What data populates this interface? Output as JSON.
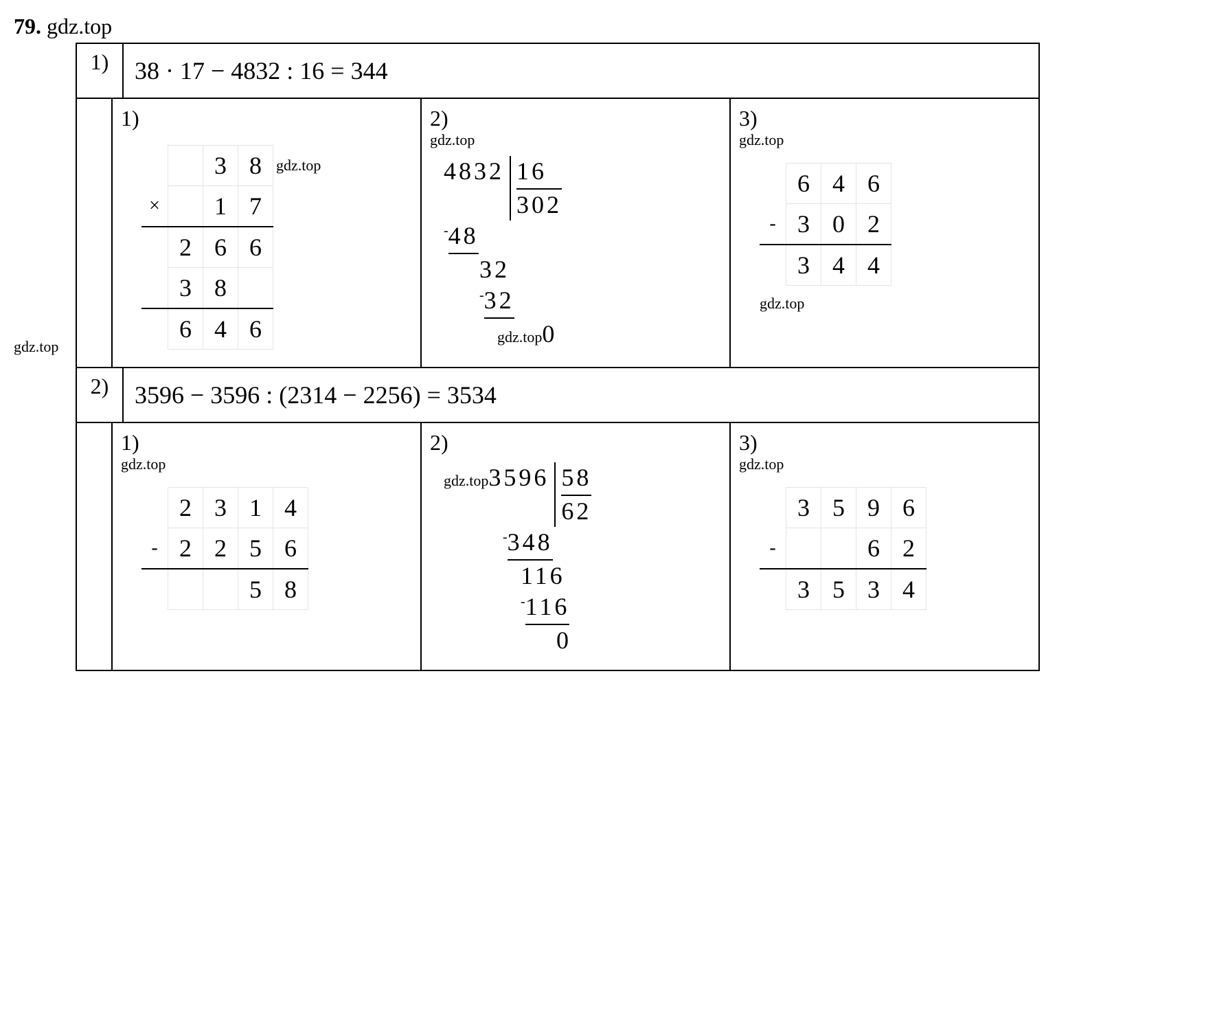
{
  "problem_number": "79.",
  "header_watermark": "gdz.top",
  "left_watermark": "gdz.top",
  "problems": [
    {
      "label": "1)",
      "equation": "38 · 17 − 4832 : 16 = 344",
      "steps": [
        {
          "label": "1)",
          "type": "column",
          "op": "×",
          "watermark_in_cell": "gdz.top",
          "rows": [
            [
              "",
              "3",
              "8"
            ],
            [
              "",
              "1",
              "7"
            ],
            [
              "2",
              "6",
              "6"
            ],
            [
              "3",
              "8",
              ""
            ],
            [
              "6",
              "4",
              "6"
            ]
          ],
          "line_after": [
            1,
            3
          ]
        },
        {
          "label": "2)",
          "type": "longdiv",
          "dividend": "4832",
          "divisor": "16",
          "quotient": "302",
          "work_lines": [
            {
              "indent": 0,
              "text": "48",
              "minus": true,
              "underline": true
            },
            {
              "indent": 2,
              "text": "32",
              "minus": false,
              "underline": false
            },
            {
              "indent": 2,
              "text": "32",
              "minus": true,
              "underline": true
            },
            {
              "indent": 3,
              "text": "0",
              "minus": false,
              "underline": false,
              "prefix_wm": "gdz.top"
            }
          ],
          "watermark_top": "gdz.top"
        },
        {
          "label": "3)",
          "type": "column",
          "op": "-",
          "watermark_top": "gdz.top",
          "watermark_bottom": "gdz.top",
          "rows": [
            [
              "6",
              "4",
              "6"
            ],
            [
              "3",
              "0",
              "2"
            ],
            [
              "3",
              "4",
              "4"
            ]
          ],
          "line_after": [
            1
          ]
        }
      ]
    },
    {
      "label": "2)",
      "equation": "3596 − 3596 : (2314 − 2256) = 3534",
      "steps": [
        {
          "label": "1)",
          "type": "column",
          "op": "-",
          "watermark_top": "gdz.top",
          "rows": [
            [
              "2",
              "3",
              "1",
              "4"
            ],
            [
              "2",
              "2",
              "5",
              "6"
            ],
            [
              "",
              "",
              "5",
              "8"
            ]
          ],
          "line_after": [
            1
          ]
        },
        {
          "label": "2)",
          "type": "longdiv",
          "watermark_prefix": "gdz.top",
          "dividend": "3596",
          "divisor": "58",
          "quotient": "62",
          "work_lines": [
            {
              "indent": 0,
              "text": "348",
              "minus": true,
              "underline": true
            },
            {
              "indent": 1,
              "text": "116",
              "minus": false,
              "underline": false
            },
            {
              "indent": 1,
              "text": "116",
              "minus": true,
              "underline": true
            },
            {
              "indent": 3,
              "text": "0",
              "minus": false,
              "underline": false
            }
          ]
        },
        {
          "label": "3)",
          "type": "column",
          "op": "-",
          "watermark_top": "gdz.top",
          "rows": [
            [
              "3",
              "5",
              "9",
              "6"
            ],
            [
              "",
              "",
              "6",
              "2"
            ],
            [
              "3",
              "5",
              "3",
              "4"
            ]
          ],
          "line_after": [
            1
          ]
        }
      ]
    }
  ]
}
